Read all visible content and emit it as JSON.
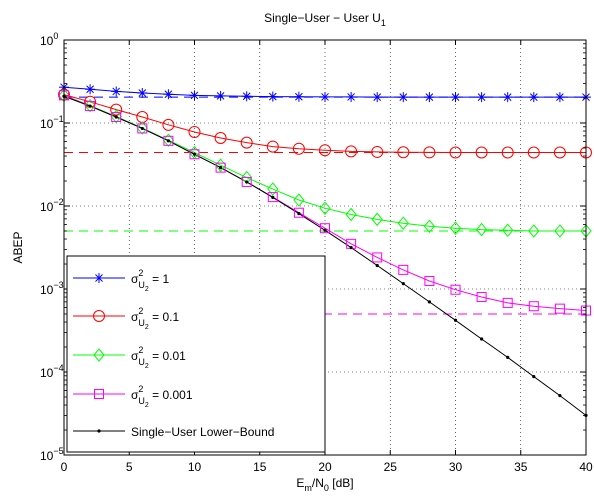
{
  "chart_data": {
    "type": "line",
    "title": {
      "text": "Single−User − User U",
      "subscript": "1"
    },
    "xlabel": {
      "part1": "E",
      "sub1": "m",
      "part2": "/N",
      "sub2": "0",
      "part3": " [dB]"
    },
    "ylabel": "ABEP",
    "xlim": [
      0,
      40
    ],
    "ylim": [
      1e-05,
      1
    ],
    "yscale": "log",
    "grid": true,
    "legend_position": "bottom-left",
    "x_ticks": [
      0,
      5,
      10,
      15,
      20,
      25,
      30,
      35,
      40
    ],
    "x_tick_labels": [
      "0",
      "5",
      "10",
      "15",
      "20",
      "25",
      "30",
      "35",
      "40"
    ],
    "y_ticks": [
      -5,
      -4,
      -3,
      -2,
      -1,
      0
    ],
    "y_tick_labels": [
      "10",
      "10",
      "10",
      "10",
      "10",
      "10"
    ],
    "y_tick_exponents": [
      "−5",
      "−4",
      "−3",
      "−2",
      "−1",
      "0"
    ],
    "x": [
      0,
      2,
      4,
      6,
      8,
      10,
      12,
      14,
      16,
      18,
      20,
      22,
      24,
      26,
      28,
      30,
      32,
      34,
      36,
      38,
      40
    ],
    "series": [
      {
        "name": "σ",
        "legend_sup": "2",
        "legend_sub": "U",
        "legend_subsub": "2",
        "legend_value": " = 1",
        "color": "#0000ff",
        "marker": "star",
        "values": [
          0.27,
          0.255,
          0.24,
          0.23,
          0.222,
          0.215,
          0.212,
          0.21,
          0.208,
          0.207,
          0.206,
          0.206,
          0.205,
          0.205,
          0.205,
          0.205,
          0.205,
          0.205,
          0.205,
          0.205,
          0.205
        ],
        "asymptote": 0.205
      },
      {
        "name": "σ",
        "legend_sup": "2",
        "legend_sub": "U",
        "legend_subsub": "2",
        "legend_value": " = 0.1",
        "color": "#ff0000",
        "marker": "circle",
        "values": [
          0.22,
          0.18,
          0.145,
          0.118,
          0.095,
          0.078,
          0.066,
          0.058,
          0.052,
          0.049,
          0.047,
          0.0455,
          0.0448,
          0.0444,
          0.0442,
          0.0441,
          0.0441,
          0.0441,
          0.0441,
          0.0441,
          0.0441
        ],
        "asymptote": 0.0441
      },
      {
        "name": "σ",
        "legend_sup": "2",
        "legend_sub": "U",
        "legend_subsub": "2",
        "legend_value": " = 0.01",
        "color": "#00ff00",
        "marker": "diamond",
        "values": [
          0.215,
          0.162,
          0.12,
          0.087,
          0.062,
          0.044,
          0.031,
          0.022,
          0.016,
          0.0118,
          0.0094,
          0.0079,
          0.0069,
          0.0062,
          0.0057,
          0.0054,
          0.0052,
          0.0051,
          0.005,
          0.005,
          0.005
        ],
        "asymptote": 0.005
      },
      {
        "name": "σ",
        "legend_sup": "2",
        "legend_sub": "U",
        "legend_subsub": "2",
        "legend_value": " = 0.001",
        "color": "#ff00ff",
        "marker": "square",
        "values": [
          0.215,
          0.16,
          0.118,
          0.086,
          0.061,
          0.042,
          0.029,
          0.0195,
          0.0128,
          0.0083,
          0.0054,
          0.0035,
          0.0024,
          0.0017,
          0.00125,
          0.00098,
          0.0008,
          0.00068,
          0.00062,
          0.00058,
          0.00055
        ],
        "asymptote": 0.0005
      },
      {
        "name": "Single−User Lower−Bound",
        "color": "#000000",
        "marker": "dot",
        "values": [
          0.21,
          0.16,
          0.118,
          0.086,
          0.061,
          0.042,
          0.029,
          0.0195,
          0.0127,
          0.0081,
          0.0051,
          0.00315,
          0.00192,
          0.00116,
          0.0007,
          0.00042,
          0.00025,
          0.00015,
          8.8e-05,
          5.2e-05,
          3e-05
        ]
      }
    ]
  }
}
